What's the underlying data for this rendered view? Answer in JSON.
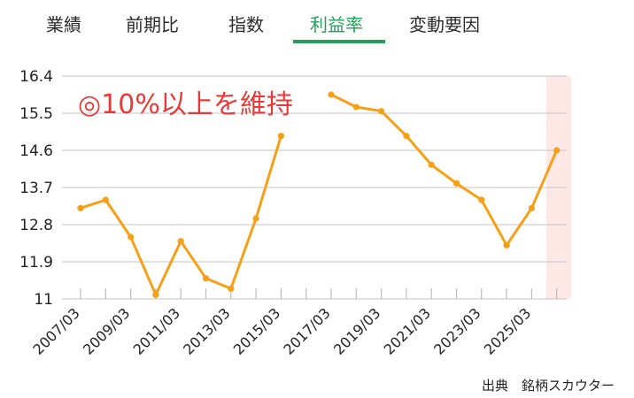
{
  "tabs": [
    {
      "label": "業績",
      "active": false
    },
    {
      "label": "前期比",
      "active": false
    },
    {
      "label": "指数",
      "active": false
    },
    {
      "label": "利益率",
      "active": true
    },
    {
      "label": "変動要因",
      "active": false
    }
  ],
  "colors": {
    "line": "#f5a016",
    "accent": "#22a05a",
    "annotation": "#e83838",
    "highlight": "#fde8e6",
    "grid": "#cfcfcf"
  },
  "chart_data": {
    "type": "line",
    "ylim": [
      11,
      16.4
    ],
    "yticks": [
      "16.4",
      "15.5",
      "14.6",
      "13.7",
      "12.8",
      "11.9",
      "11"
    ],
    "x_tick_labels": [
      "2007/03",
      "2009/03",
      "2011/03",
      "2013/03",
      "2015/03",
      "2017/03",
      "2019/03",
      "2021/03",
      "2023/03",
      "2025/03"
    ],
    "x": [
      "2007/03",
      "2008/03",
      "2009/03",
      "2010/03",
      "2011/03",
      "2012/03",
      "2013/03",
      "2014/03",
      "2015/03",
      "2016/03",
      "2017/03",
      "2018/03",
      "2019/03",
      "2020/03",
      "2021/03",
      "2022/03",
      "2023/03",
      "2024/03",
      "2025/03",
      "2026/03"
    ],
    "values": [
      13.2,
      13.4,
      12.5,
      11.1,
      12.4,
      11.5,
      11.25,
      12.95,
      14.95,
      null,
      15.95,
      15.65,
      15.55,
      14.95,
      14.25,
      13.8,
      13.4,
      12.3,
      13.2,
      14.6
    ],
    "highlight_last": true,
    "grid": true,
    "annotation": "◎10%以上を維持"
  },
  "source": "出典　銘柄スカウター"
}
